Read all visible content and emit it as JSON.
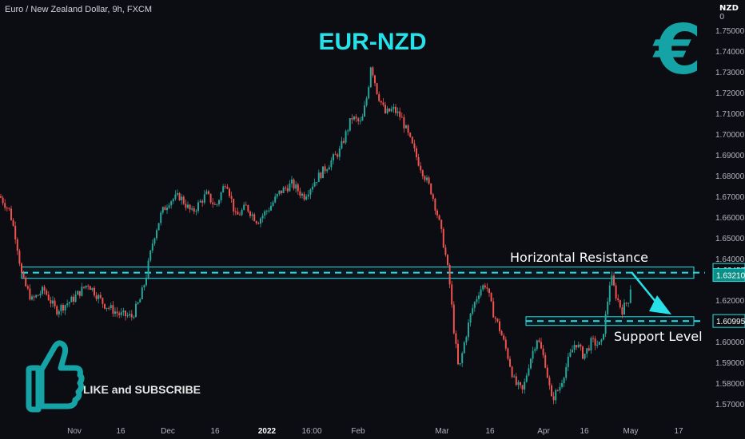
{
  "header": {
    "symbol": "Euro / New Zealand Dollar, 9h, FXCM",
    "currency": "NZD",
    "currency_suffix": "0"
  },
  "title": "EUR-NZD",
  "logo": {
    "glyph": "€",
    "color": "#16a3a5"
  },
  "annotations": {
    "resistance_label": "Horizontal Resistance",
    "support_label": "Support Level",
    "cta": "LIKE and SUBSCRIBE"
  },
  "colors": {
    "background": "#0b0d13",
    "up": "#26a69a",
    "down": "#ef5350",
    "zone": "#27e1e8",
    "title": "#27e1e8"
  },
  "chart_data": {
    "type": "candlestick",
    "title": "EUR-NZD",
    "y_ticks": [
      "1.75000",
      "1.74000",
      "1.73000",
      "1.72000",
      "1.71000",
      "1.70000",
      "1.69000",
      "1.68000",
      "1.67000",
      "1.66000",
      "1.65000",
      "1.64000",
      "1.62000",
      "1.60000",
      "1.59000",
      "1.58000",
      "1.57000"
    ],
    "x_ticks": [
      "Nov",
      "16",
      "Dec",
      "16",
      "2022",
      "16:00",
      "Feb",
      "Mar",
      "16",
      "Apr",
      "16",
      "May",
      "17"
    ],
    "ylim": [
      1.5645,
      1.7575
    ],
    "price_labels": [
      {
        "value": 1.63457,
        "text": "1.63457",
        "style": "outline"
      },
      {
        "value": 1.6321,
        "text": "1.63210",
        "style": "filled"
      },
      {
        "value": 1.60995,
        "text": "1.60995",
        "style": "outline"
      }
    ],
    "resistance_zone": {
      "low": 1.6305,
      "high": 1.636,
      "level": 1.6332
    },
    "support_zone": {
      "low": 1.6078,
      "high": 1.612,
      "level": 1.6099
    },
    "approx_path": [
      [
        0,
        1.67
      ],
      [
        12,
        1.663
      ],
      [
        20,
        1.65
      ],
      [
        28,
        1.63
      ],
      [
        40,
        1.62
      ],
      [
        55,
        1.625
      ],
      [
        70,
        1.615
      ],
      [
        90,
        1.62
      ],
      [
        110,
        1.628
      ],
      [
        130,
        1.618
      ],
      [
        150,
        1.613
      ],
      [
        165,
        1.612
      ],
      [
        175,
        1.62
      ],
      [
        182,
        1.63
      ],
      [
        192,
        1.65
      ],
      [
        202,
        1.662
      ],
      [
        212,
        1.668
      ],
      [
        225,
        1.67
      ],
      [
        240,
        1.662
      ],
      [
        258,
        1.671
      ],
      [
        270,
        1.665
      ],
      [
        283,
        1.678
      ],
      [
        295,
        1.66
      ],
      [
        308,
        1.665
      ],
      [
        322,
        1.658
      ],
      [
        338,
        1.665
      ],
      [
        350,
        1.672
      ],
      [
        365,
        1.676
      ],
      [
        380,
        1.67
      ],
      [
        395,
        1.678
      ],
      [
        410,
        1.685
      ],
      [
        425,
        1.692
      ],
      [
        440,
        1.708
      ],
      [
        452,
        1.705
      ],
      [
        460,
        1.72
      ],
      [
        464,
        1.734
      ],
      [
        472,
        1.72
      ],
      [
        482,
        1.71
      ],
      [
        492,
        1.712
      ],
      [
        502,
        1.708
      ],
      [
        512,
        1.698
      ],
      [
        522,
        1.688
      ],
      [
        532,
        1.679
      ],
      [
        540,
        1.672
      ],
      [
        548,
        1.66
      ],
      [
        556,
        1.645
      ],
      [
        562,
        1.63
      ],
      [
        568,
        1.605
      ],
      [
        574,
        1.585
      ],
      [
        580,
        1.598
      ],
      [
        590,
        1.615
      ],
      [
        600,
        1.625
      ],
      [
        608,
        1.628
      ],
      [
        616,
        1.615
      ],
      [
        626,
        1.605
      ],
      [
        634,
        1.595
      ],
      [
        644,
        1.58
      ],
      [
        654,
        1.576
      ],
      [
        662,
        1.59
      ],
      [
        672,
        1.602
      ],
      [
        682,
        1.59
      ],
      [
        690,
        1.572
      ],
      [
        700,
        1.578
      ],
      [
        710,
        1.59
      ],
      [
        720,
        1.6
      ],
      [
        730,
        1.593
      ],
      [
        740,
        1.6
      ],
      [
        752,
        1.598
      ],
      [
        758,
        1.613
      ],
      [
        764,
        1.632
      ],
      [
        770,
        1.623
      ],
      [
        778,
        1.615
      ],
      [
        786,
        1.62
      ],
      [
        790,
        1.629
      ]
    ]
  }
}
